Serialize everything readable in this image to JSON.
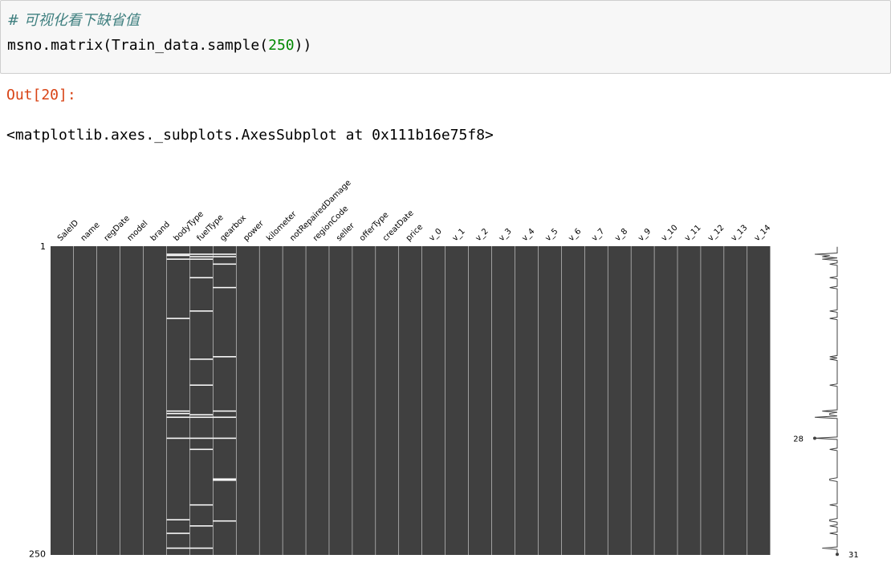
{
  "cell": {
    "comment": "# 可视化看下缺省值",
    "code_before": "msno.matrix(Train_data.sample(",
    "code_number": "250",
    "code_after": "))"
  },
  "output": {
    "prompt": "Out[20]:",
    "text": "<matplotlib.axes._subplots.AxesSubplot at 0x111b16e75f8>"
  },
  "chart_data": {
    "type": "missing-matrix",
    "row_labels": [
      1,
      250
    ],
    "sparkline_labels": {
      "min": 28,
      "max": 31
    },
    "columns": [
      {
        "name": "SaleID",
        "missing": []
      },
      {
        "name": "name",
        "missing": []
      },
      {
        "name": "regDate",
        "missing": []
      },
      {
        "name": "model",
        "missing": []
      },
      {
        "name": "brand",
        "missing": []
      },
      {
        "name": "bodyType",
        "missing": [
          7,
          8,
          11,
          59,
          134,
          136,
          139,
          156,
          222,
          233,
          245
        ]
      },
      {
        "name": "fuelType",
        "missing": [
          7,
          9,
          11,
          26,
          53,
          92,
          113,
          137,
          139,
          156,
          165,
          210,
          227,
          245
        ]
      },
      {
        "name": "gearbox",
        "missing": [
          7,
          9,
          15,
          34,
          90,
          134,
          139,
          156,
          189,
          190,
          223
        ]
      },
      {
        "name": "power",
        "missing": []
      },
      {
        "name": "kilometer",
        "missing": []
      },
      {
        "name": "notRepairedDamage",
        "missing": []
      },
      {
        "name": "regionCode",
        "missing": []
      },
      {
        "name": "seller",
        "missing": []
      },
      {
        "name": "offerType",
        "missing": []
      },
      {
        "name": "creatDate",
        "missing": []
      },
      {
        "name": "price",
        "missing": []
      },
      {
        "name": "v_0",
        "missing": []
      },
      {
        "name": "v_1",
        "missing": []
      },
      {
        "name": "v_2",
        "missing": []
      },
      {
        "name": "v_3",
        "missing": []
      },
      {
        "name": "v_4",
        "missing": []
      },
      {
        "name": "v_5",
        "missing": []
      },
      {
        "name": "v_6",
        "missing": []
      },
      {
        "name": "v_7",
        "missing": []
      },
      {
        "name": "v_8",
        "missing": []
      },
      {
        "name": "v_9",
        "missing": []
      },
      {
        "name": "v_10",
        "missing": []
      },
      {
        "name": "v_11",
        "missing": []
      },
      {
        "name": "v_12",
        "missing": []
      },
      {
        "name": "v_13",
        "missing": []
      },
      {
        "name": "v_14",
        "missing": []
      }
    ],
    "matrix_color": "#404040",
    "missing_color": "#ffffff"
  }
}
